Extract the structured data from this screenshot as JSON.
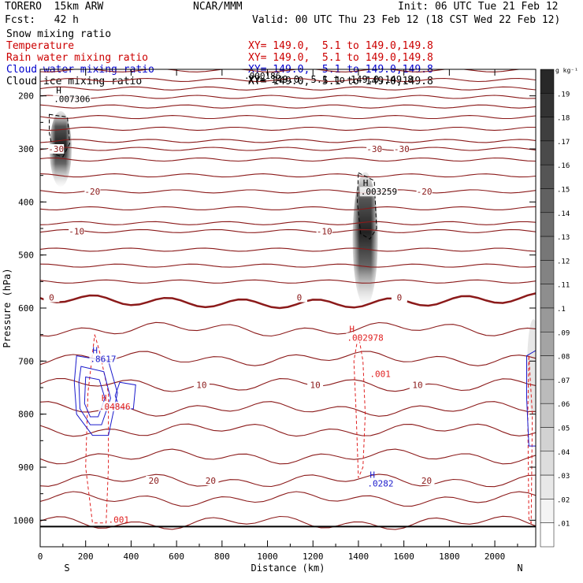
{
  "header": {
    "model": "TORERO  15km ARW",
    "fcst": "Fcst:   42 h",
    "org": "NCAR/MMM",
    "init": "Init: 06 UTC Tue 21 Feb 12",
    "valid": "Valid: 00 UTC Thu 23 Feb 12 (18 CST Wed 22 Feb 12)"
  },
  "legend": [
    {
      "name": "Snow mixing ratio",
      "xy": "",
      "color": "#000000"
    },
    {
      "name": "Temperature",
      "xy": "XY= 149.0,  5.1 to 149.0,149.8",
      "color": "#cc0000"
    },
    {
      "name": "Rain water mixing ratio",
      "xy": "XY= 149.0,  5.1 to 149.0,149.8",
      "color": "#cc0000"
    },
    {
      "name": "Cloud water mixing ratio",
      "xy": "XY= 149.0,  5.1 to 149.0,149.8",
      "color": "#0000cc"
    },
    {
      "name": "Cloud ice mixing ratio",
      "xy": "XY= 149.0,  5.1 to 149.0,149.8",
      "color": "#000000"
    }
  ],
  "snow_xy": "XY= 149.0,  5.1 to 149.0,149.8",
  "top_label": ".000186",
  "chart_data": {
    "type": "contour",
    "xlabel": "Distance (km)",
    "ylabel": "Pressure (hPa)",
    "xlim": [
      0,
      2180
    ],
    "ylim": [
      1050,
      150
    ],
    "x_ticks": [
      "0",
      "200",
      "400",
      "600",
      "800",
      "1000",
      "1200",
      "1400",
      "1600",
      "1800",
      "2000"
    ],
    "y_ticks": [
      "200",
      "300",
      "400",
      "500",
      "600",
      "700",
      "800",
      "900",
      "1000"
    ],
    "x_end_labels": {
      "left": "S",
      "right": "N"
    },
    "colorbar": {
      "unit": "g kg⁻¹",
      "labels": [
        ".19",
        ".18",
        ".17",
        ".16",
        ".15",
        ".14",
        ".13",
        ".12",
        ".11",
        ".1",
        ".09",
        ".08",
        ".07",
        ".06",
        ".05",
        ".04",
        ".03",
        ".02",
        ".01"
      ]
    },
    "temperature_contours": [
      {
        "label": "-30",
        "pressure": 300,
        "label_x": [
          70,
          1470,
          1590
        ]
      },
      {
        "label": "-20",
        "pressure": 380,
        "label_x": [
          230,
          1690
        ]
      },
      {
        "label": "-10",
        "pressure": 455,
        "label_x": [
          160,
          1250
        ]
      },
      {
        "label": "0",
        "pressure": 580,
        "label_x": [
          50,
          1140,
          1580
        ]
      },
      {
        "label": "10",
        "pressure": 745,
        "label_x": [
          710,
          1210,
          1660
        ]
      },
      {
        "label": "20",
        "pressure": 925,
        "label_x": [
          500,
          750,
          1700
        ]
      }
    ],
    "maxima": [
      {
        "mark": "H",
        "value": ".007306",
        "x": 70,
        "pressure": 210,
        "field": "cloud ice"
      },
      {
        "mark": "H",
        "value": ".003259",
        "x": 1420,
        "pressure": 385,
        "field": "cloud ice"
      },
      {
        "mark": "H",
        "value": ".002978",
        "x": 1360,
        "pressure": 660,
        "field": "rain water"
      },
      {
        "mark": "H",
        "value": ".8617",
        "x": 230,
        "pressure": 700,
        "field": "cloud water"
      },
      {
        "mark": "H",
        "value": ".04846",
        "x": 270,
        "pressure": 790,
        "field": "rain water"
      },
      {
        "mark": "H",
        "value": ".0282",
        "x": 1450,
        "pressure": 935,
        "field": "cloud water"
      }
    ],
    "extra_labels": [
      {
        "text": ".001",
        "x": 1450,
        "pressure": 730,
        "field": "rain water"
      },
      {
        "text": ".001",
        "x": 300,
        "pressure": 1005,
        "field": "rain water"
      }
    ]
  }
}
